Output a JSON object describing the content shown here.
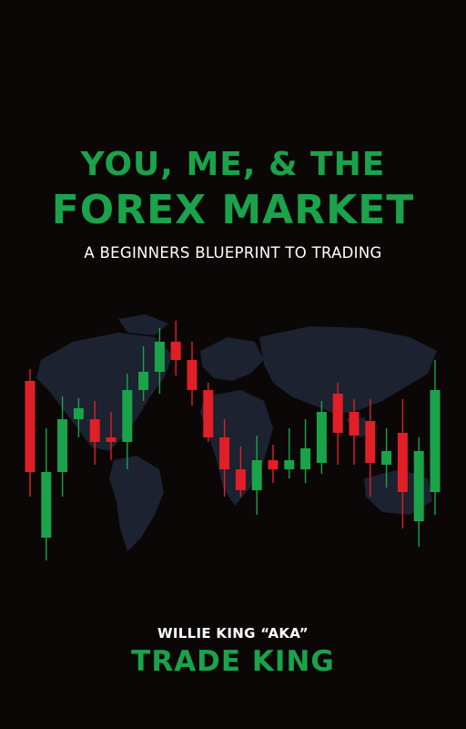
{
  "cover": {
    "title_line1": "YOU, ME, & THE",
    "title_line2": "FOREX MARKET",
    "subtitle": "A BEGINNERS BLUEPRINT TO TRADING",
    "author_line": "WILLIE KING “AKA”",
    "author_alias": "TRADE KING"
  },
  "colors": {
    "background": "#0b0707",
    "title_green": "#1aa34a",
    "candle_green": "#1aa34a",
    "candle_red": "#e01f26",
    "map": "#1c2230"
  },
  "decor": {
    "background_image": "world-map",
    "chart_type": "candlestick",
    "candles": [
      {
        "dir": "down"
      },
      {
        "dir": "up"
      },
      {
        "dir": "up"
      },
      {
        "dir": "up"
      },
      {
        "dir": "down"
      },
      {
        "dir": "down"
      },
      {
        "dir": "up"
      },
      {
        "dir": "up"
      },
      {
        "dir": "up"
      },
      {
        "dir": "down"
      },
      {
        "dir": "down"
      },
      {
        "dir": "down"
      },
      {
        "dir": "down"
      },
      {
        "dir": "down"
      },
      {
        "dir": "up"
      },
      {
        "dir": "down"
      },
      {
        "dir": "up"
      },
      {
        "dir": "up"
      },
      {
        "dir": "up"
      },
      {
        "dir": "down"
      },
      {
        "dir": "down"
      },
      {
        "dir": "down"
      },
      {
        "dir": "up"
      },
      {
        "dir": "down"
      },
      {
        "dir": "up"
      },
      {
        "dir": "up"
      }
    ]
  }
}
